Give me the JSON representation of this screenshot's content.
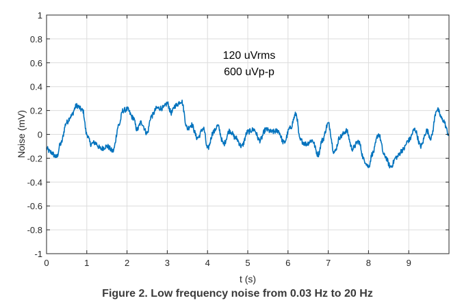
{
  "caption": "Figure 2. Low frequency noise from 0.03 Hz to 20 Hz",
  "chart_data": {
    "type": "line",
    "title": "",
    "xlabel": "t (s)",
    "ylabel": "Noise (mV)",
    "xlim": [
      0,
      10
    ],
    "ylim": [
      -1,
      1
    ],
    "xticks": [
      0,
      1,
      2,
      3,
      4,
      5,
      6,
      7,
      8,
      9
    ],
    "xtick_labels": [
      "0",
      "1",
      "2",
      "3",
      "4",
      "5",
      "6",
      "7",
      "8",
      "9"
    ],
    "yticks": [
      -1,
      -0.8,
      -0.6,
      -0.4,
      -0.2,
      0,
      0.2,
      0.4,
      0.6,
      0.8,
      1
    ],
    "ytick_labels": [
      "-1",
      "-0.8",
      "-0.6",
      "-0.4",
      "-0.2",
      "0",
      "0.2",
      "0.4",
      "0.6",
      "0.8",
      "1"
    ],
    "grid": true,
    "annotations": [
      "120 uVrms",
      "600 uVp-p"
    ],
    "line_color": "#0072BD",
    "grid_color": "#dcdcdc",
    "series": [
      {
        "x": [
          0,
          0.1,
          0.25,
          0.35,
          0.5,
          0.6,
          0.75,
          0.9,
          1.0,
          1.1,
          1.2,
          1.35,
          1.5,
          1.65,
          1.8,
          1.9,
          2.0,
          2.15,
          2.25,
          2.35,
          2.5,
          2.6,
          2.75,
          2.9,
          3.0,
          3.1,
          3.2,
          3.35,
          3.5,
          3.6,
          3.75,
          3.9,
          4.0,
          4.15,
          4.25,
          4.4,
          4.55,
          4.7,
          4.85,
          5.0,
          5.15,
          5.3,
          5.45,
          5.6,
          5.75,
          5.9,
          6.05,
          6.2,
          6.3,
          6.45,
          6.6,
          6.75,
          6.85,
          7.0,
          7.15,
          7.3,
          7.45,
          7.6,
          7.75,
          7.9,
          8.0,
          8.1,
          8.25,
          8.4,
          8.55,
          8.7,
          8.85,
          9.0,
          9.15,
          9.3,
          9.45,
          9.55,
          9.7,
          9.85,
          10.0
        ],
        "y": [
          -0.12,
          -0.15,
          -0.19,
          -0.08,
          0.1,
          0.15,
          0.24,
          0.2,
          0.0,
          -0.08,
          -0.07,
          -0.12,
          -0.1,
          -0.14,
          0.08,
          0.2,
          0.21,
          0.14,
          0.04,
          0.1,
          0.01,
          0.15,
          0.22,
          0.22,
          0.26,
          0.18,
          0.24,
          0.28,
          0.05,
          0.08,
          -0.03,
          0.05,
          -0.12,
          0.02,
          0.07,
          -0.08,
          0.03,
          -0.03,
          -0.1,
          0.02,
          0.04,
          -0.05,
          0.04,
          0.02,
          0.03,
          -0.07,
          0.05,
          0.17,
          -0.05,
          -0.08,
          -0.05,
          -0.17,
          -0.05,
          0.09,
          -0.15,
          -0.02,
          0.03,
          -0.12,
          -0.06,
          -0.22,
          -0.27,
          -0.16,
          0.0,
          -0.18,
          -0.27,
          -0.19,
          -0.13,
          -0.05,
          0.04,
          -0.1,
          0.03,
          -0.03,
          0.21,
          0.12,
          0.0
        ]
      }
    ]
  }
}
